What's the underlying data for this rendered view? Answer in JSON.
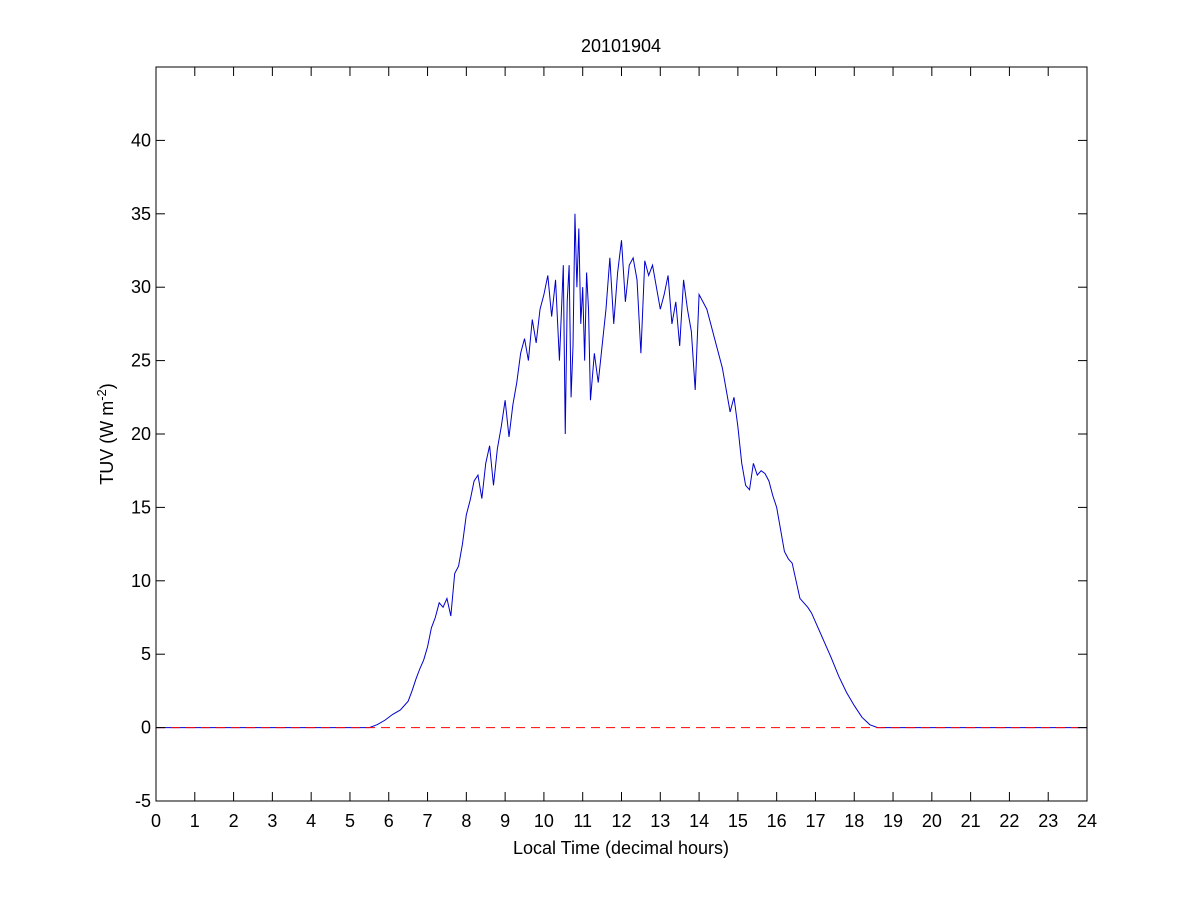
{
  "chart_data": {
    "type": "line",
    "title": "20101904",
    "xlabel": "Local Time (decimal hours)",
    "ylabel_main": "TUV (W m",
    "ylabel_sup": "-2",
    "ylabel_close": ")",
    "xlim": [
      0,
      24
    ],
    "ylim": [
      -5,
      45
    ],
    "xticks": [
      0,
      1,
      2,
      3,
      4,
      5,
      6,
      7,
      8,
      9,
      10,
      11,
      12,
      13,
      14,
      15,
      16,
      17,
      18,
      19,
      20,
      21,
      22,
      23,
      24
    ],
    "yticks": [
      -5,
      0,
      5,
      10,
      15,
      20,
      25,
      30,
      35,
      40
    ],
    "grid": false,
    "series": [
      {
        "color": "#0000cc",
        "style": "solid",
        "x": [
          0,
          5.5,
          5.7,
          5.9,
          6.1,
          6.3,
          6.5,
          6.6,
          6.7,
          6.8,
          6.9,
          7.0,
          7.1,
          7.2,
          7.3,
          7.4,
          7.5,
          7.6,
          7.7,
          7.8,
          7.9,
          8.0,
          8.1,
          8.2,
          8.3,
          8.4,
          8.5,
          8.6,
          8.7,
          8.8,
          8.9,
          9.0,
          9.1,
          9.2,
          9.3,
          9.4,
          9.5,
          9.6,
          9.7,
          9.8,
          9.9,
          10.0,
          10.1,
          10.2,
          10.3,
          10.4,
          10.5,
          10.55,
          10.6,
          10.65,
          10.7,
          10.75,
          10.8,
          10.85,
          10.9,
          10.95,
          11.0,
          11.05,
          11.1,
          11.15,
          11.2,
          11.3,
          11.4,
          11.5,
          11.6,
          11.7,
          11.8,
          11.9,
          12.0,
          12.1,
          12.2,
          12.3,
          12.4,
          12.5,
          12.6,
          12.7,
          12.8,
          12.9,
          13.0,
          13.1,
          13.2,
          13.3,
          13.4,
          13.5,
          13.6,
          13.7,
          13.8,
          13.9,
          14.0,
          14.1,
          14.2,
          14.3,
          14.4,
          14.5,
          14.6,
          14.7,
          14.8,
          14.9,
          15.0,
          15.1,
          15.2,
          15.3,
          15.4,
          15.5,
          15.6,
          15.7,
          15.8,
          15.9,
          16.0,
          16.1,
          16.2,
          16.3,
          16.4,
          16.5,
          16.6,
          16.7,
          16.8,
          16.9,
          17.0,
          17.2,
          17.4,
          17.6,
          17.8,
          18.0,
          18.2,
          18.4,
          18.6,
          18.8,
          19.0,
          24
        ],
        "y": [
          0,
          0,
          0.2,
          0.5,
          0.9,
          1.2,
          1.8,
          2.5,
          3.3,
          4.0,
          4.6,
          5.5,
          6.8,
          7.5,
          8.5,
          8.2,
          8.8,
          7.6,
          10.5,
          11.0,
          12.5,
          14.5,
          15.5,
          16.8,
          17.2,
          15.6,
          18.0,
          19.2,
          16.5,
          19.0,
          20.5,
          22.3,
          19.8,
          22.0,
          23.5,
          25.5,
          26.5,
          25.0,
          27.8,
          26.2,
          28.5,
          29.5,
          30.8,
          28.0,
          30.5,
          25.0,
          31.5,
          20.0,
          29.0,
          31.5,
          22.5,
          26.0,
          35.0,
          30.0,
          34.0,
          27.5,
          30.0,
          25.0,
          31.0,
          28.5,
          22.3,
          25.5,
          23.5,
          26.0,
          28.5,
          32.0,
          27.5,
          31.0,
          33.2,
          29.0,
          31.5,
          32.0,
          30.5,
          25.5,
          31.8,
          30.8,
          31.5,
          30.0,
          28.5,
          29.5,
          30.8,
          27.5,
          29.0,
          26.0,
          30.5,
          28.5,
          27.0,
          23.0,
          29.5,
          29.0,
          28.5,
          27.5,
          26.5,
          25.5,
          24.5,
          23.0,
          21.5,
          22.5,
          20.5,
          18.0,
          16.5,
          16.2,
          18.0,
          17.2,
          17.5,
          17.3,
          16.8,
          15.8,
          15.0,
          13.5,
          12.0,
          11.5,
          11.2,
          10.0,
          8.8,
          8.5,
          8.2,
          7.8,
          7.2,
          6.0,
          4.8,
          3.5,
          2.4,
          1.5,
          0.7,
          0.2,
          0,
          0,
          0,
          0
        ]
      },
      {
        "color": "#ff0000",
        "style": "dashed",
        "x": [
          0,
          24
        ],
        "y": [
          0,
          0
        ]
      }
    ]
  }
}
